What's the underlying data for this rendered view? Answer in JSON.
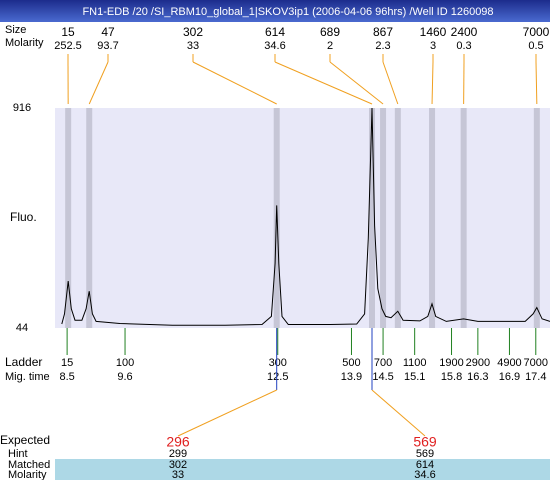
{
  "header": {
    "title": "FN1-EDB /20 /SI_RBM10_global_1|SKOV3ip1 (2006-04-06 96hrs) /Well ID 1260098"
  },
  "chart_data": {
    "type": "line",
    "ylabel": "Fluo.",
    "color": "#000000",
    "x": [
      8.4,
      8.45,
      8.52,
      8.58,
      8.65,
      8.78,
      8.86,
      8.92,
      8.98,
      9.05,
      9.5,
      10.5,
      11.5,
      12.2,
      12.38,
      12.45,
      12.48,
      12.52,
      12.58,
      12.7,
      13.5,
      14.0,
      14.15,
      14.22,
      14.29,
      14.34,
      14.4,
      14.48,
      14.55,
      14.65,
      14.78,
      14.88,
      15.2,
      15.35,
      15.43,
      15.5,
      15.7,
      16.03,
      16.3,
      17.2,
      17.35,
      17.42,
      17.52,
      17.67
    ],
    "values": [
      60,
      100,
      230,
      120,
      75,
      75,
      120,
      190,
      100,
      70,
      62,
      55,
      55,
      58,
      90,
      300,
      530,
      300,
      90,
      58,
      58,
      60,
      100,
      400,
      916,
      450,
      200,
      120,
      90,
      85,
      110,
      75,
      72,
      90,
      140,
      90,
      70,
      80,
      70,
      70,
      100,
      125,
      80,
      70
    ],
    "xlim": [
      8.27,
      17.67
    ],
    "ylim": [
      44,
      916
    ],
    "yticks": [
      44,
      916
    ],
    "peaks": {
      "label": "Size",
      "molarity_label": "Molarity",
      "sizes": [
        15,
        47,
        302,
        614,
        689,
        867,
        1460,
        2400,
        7000
      ],
      "molarity": [
        252.5,
        93.7,
        33,
        34.6,
        2,
        2.3,
        3,
        0.3,
        0.5
      ],
      "times": [
        8.52,
        8.92,
        12.48,
        14.29,
        14.5,
        14.78,
        15.43,
        16.03,
        17.42
      ]
    },
    "ladder": {
      "label": "Ladder",
      "time_label": "Mig. time",
      "sizes": [
        15,
        100,
        300,
        500,
        700,
        1100,
        1900,
        2900,
        4900,
        7000
      ],
      "times": [
        8.5,
        9.6,
        12.5,
        13.9,
        14.5,
        15.1,
        15.8,
        16.3,
        16.9,
        17.4
      ]
    }
  },
  "expected": {
    "label": "Expected",
    "hint_label": "Hint",
    "matched_label": "Matched",
    "molarity_label": "Molarity",
    "values": [
      296,
      569
    ],
    "hint": [
      299,
      569
    ],
    "matched": [
      302,
      614
    ],
    "molarity": [
      33,
      34.6
    ]
  }
}
